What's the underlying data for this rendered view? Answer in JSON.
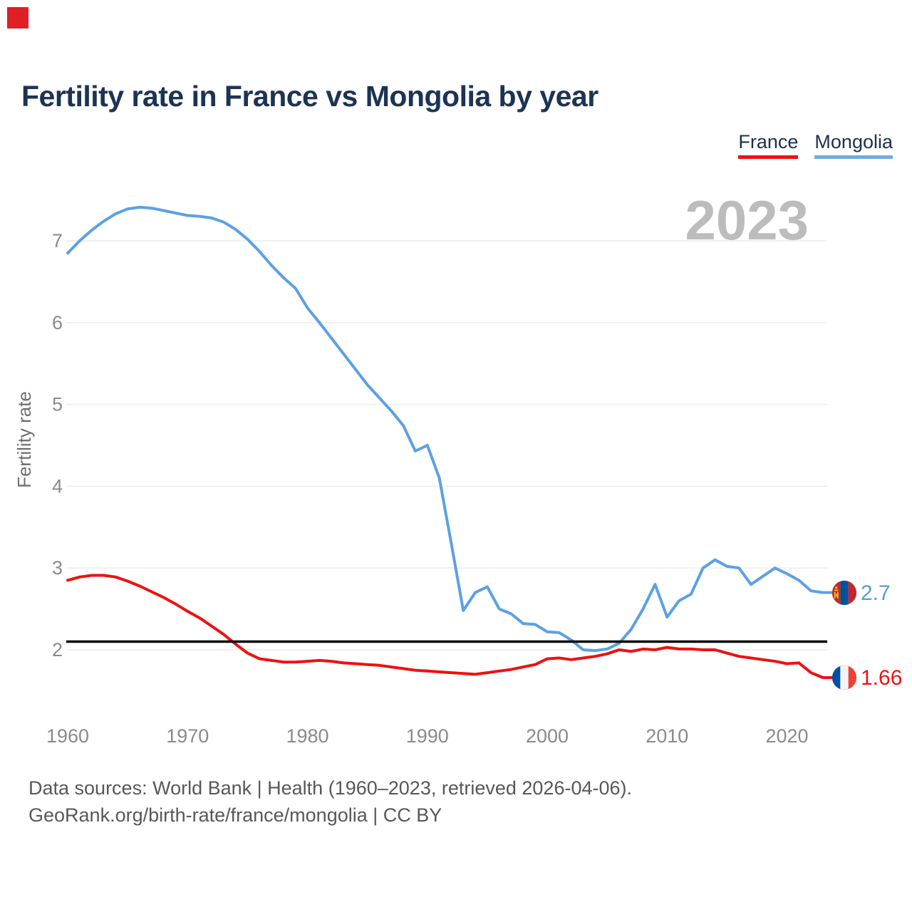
{
  "title": "Fertility rate in France vs Mongolia by year",
  "legend": {
    "france": "France",
    "mongolia": "Mongolia"
  },
  "footer": {
    "line1": "Data sources: World Bank | Health (1960–2023, retrieved 2026-04-06).",
    "line2": "GeoRank.org/birth-rate/france/mongolia | CC BY"
  },
  "chart_data": {
    "type": "line",
    "title": "Fertility rate in France vs Mongolia by year",
    "xlabel": "",
    "ylabel": "Fertility rate",
    "watermark": "2023",
    "grid": "horizontal",
    "legend_position": "top-right",
    "xlim": [
      1959.5,
      2024.5
    ],
    "ylim": [
      1.55,
      7.6
    ],
    "yticks": [
      7,
      6,
      5,
      4,
      3,
      2
    ],
    "xticks": [
      1960,
      1970,
      1980,
      1990,
      2000,
      2010,
      2020
    ],
    "reference_line": 2.1,
    "x": [
      1960,
      1961,
      1962,
      1963,
      1964,
      1965,
      1966,
      1967,
      1968,
      1969,
      1970,
      1971,
      1972,
      1973,
      1974,
      1975,
      1976,
      1977,
      1978,
      1979,
      1980,
      1981,
      1982,
      1983,
      1984,
      1985,
      1986,
      1987,
      1988,
      1989,
      1990,
      1991,
      1992,
      1993,
      1994,
      1995,
      1996,
      1997,
      1998,
      1999,
      2000,
      2001,
      2002,
      2003,
      2004,
      2005,
      2006,
      2007,
      2008,
      2009,
      2010,
      2011,
      2012,
      2013,
      2014,
      2015,
      2016,
      2017,
      2018,
      2019,
      2020,
      2021,
      2022,
      2023
    ],
    "series": [
      {
        "name": "France",
        "color": "#ee1111",
        "end_label": "1.66",
        "values": [
          2.85,
          2.89,
          2.91,
          2.91,
          2.89,
          2.84,
          2.78,
          2.71,
          2.64,
          2.56,
          2.47,
          2.39,
          2.29,
          2.19,
          2.07,
          1.96,
          1.89,
          1.87,
          1.85,
          1.85,
          1.86,
          1.87,
          1.86,
          1.84,
          1.83,
          1.82,
          1.81,
          1.79,
          1.77,
          1.75,
          1.74,
          1.73,
          1.72,
          1.71,
          1.7,
          1.72,
          1.74,
          1.76,
          1.79,
          1.82,
          1.89,
          1.9,
          1.88,
          1.9,
          1.92,
          1.95,
          2.0,
          1.98,
          2.01,
          2.0,
          2.03,
          2.01,
          2.01,
          2.0,
          2.0,
          1.96,
          1.92,
          1.9,
          1.88,
          1.86,
          1.83,
          1.84,
          1.72,
          1.66
        ]
      },
      {
        "name": "Mongolia",
        "color": "#5da0e2",
        "end_label": "2.7",
        "values": [
          6.85,
          7.0,
          7.13,
          7.24,
          7.33,
          7.39,
          7.41,
          7.4,
          7.37,
          7.34,
          7.31,
          7.3,
          7.28,
          7.23,
          7.14,
          7.02,
          6.87,
          6.7,
          6.55,
          6.42,
          6.18,
          6.0,
          5.81,
          5.62,
          5.43,
          5.24,
          5.08,
          4.92,
          4.74,
          4.43,
          4.5,
          4.1,
          3.3,
          2.48,
          2.7,
          2.77,
          2.5,
          2.44,
          2.32,
          2.31,
          2.22,
          2.21,
          2.12,
          2.0,
          1.99,
          2.01,
          2.08,
          2.25,
          2.5,
          2.8,
          2.4,
          2.6,
          2.68,
          3.0,
          3.1,
          3.02,
          3.0,
          2.8,
          2.9,
          3.0,
          2.93,
          2.85,
          2.72,
          2.7
        ]
      }
    ]
  }
}
